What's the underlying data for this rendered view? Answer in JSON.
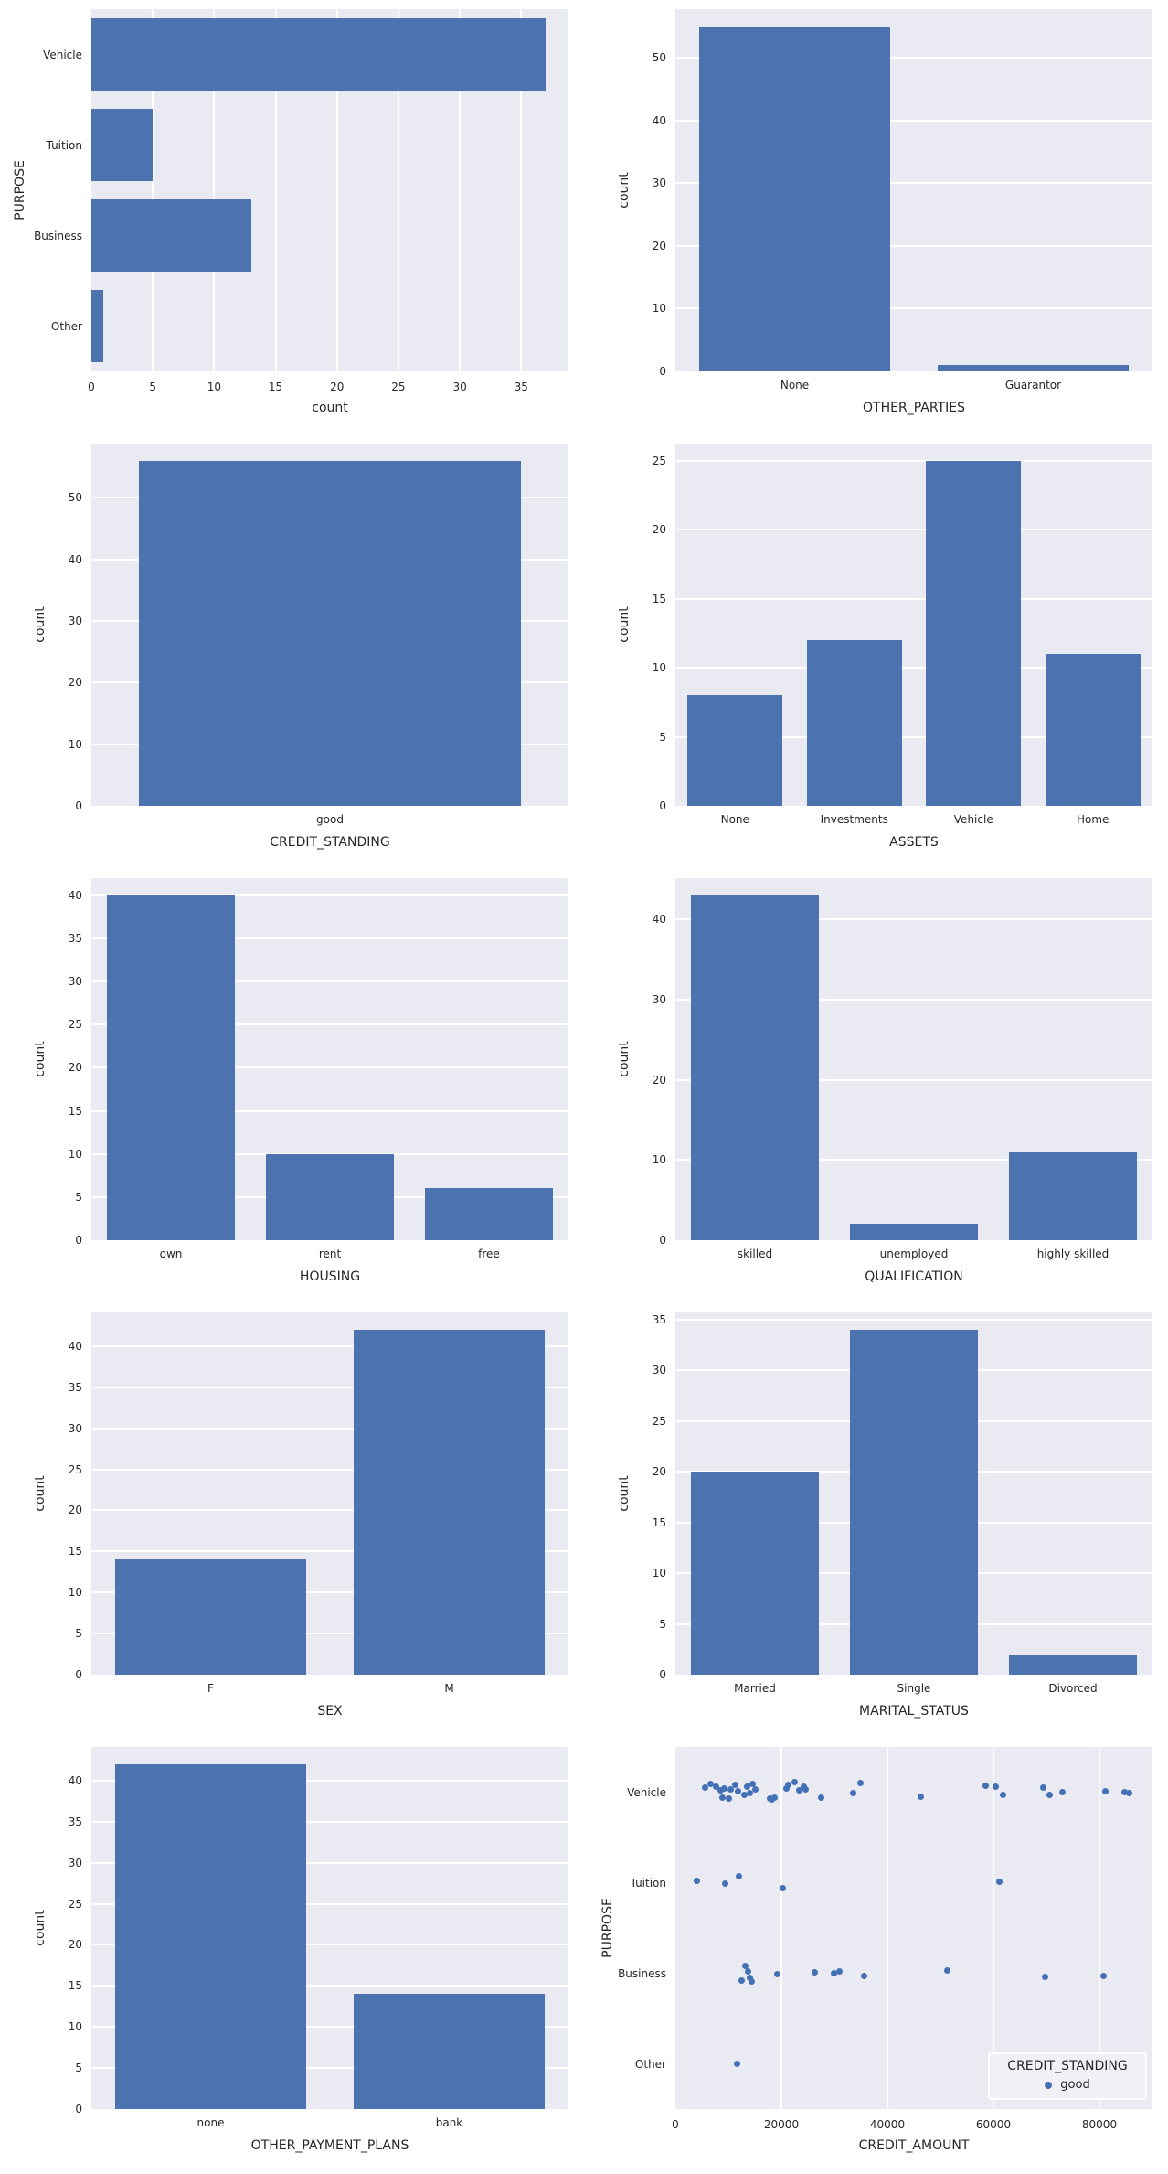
{
  "figure": {
    "bg": "#ffffff",
    "plot_bg": "#eaeaf2",
    "grid_color": "#ffffff",
    "bar_color": "#4c72b0",
    "dot_color": "#4470b5",
    "text_color": "#262626"
  },
  "chart_data": [
    {
      "type": "bar",
      "orientation": "h",
      "xlabel": "count",
      "ylabel": "PURPOSE",
      "categories": [
        "Vehicle",
        "Tuition",
        "Business",
        "Other"
      ],
      "values": [
        37,
        5,
        13,
        1
      ],
      "ticks": [
        0,
        5,
        10,
        15,
        20,
        25,
        30,
        35
      ],
      "vmax": 38.85,
      "grid": true,
      "legend_position": null
    },
    {
      "type": "bar",
      "orientation": "v",
      "xlabel": "OTHER_PARTIES",
      "ylabel": "count",
      "categories": [
        "None",
        "Guarantor"
      ],
      "values": [
        55,
        1
      ],
      "ticks": [
        0,
        10,
        20,
        30,
        40,
        50
      ],
      "vmax": 57.75,
      "grid": true,
      "legend_position": null
    },
    {
      "type": "bar",
      "orientation": "v",
      "xlabel": "CREDIT_STANDING",
      "ylabel": "count",
      "categories": [
        "good"
      ],
      "values": [
        56
      ],
      "ticks": [
        0,
        10,
        20,
        30,
        40,
        50
      ],
      "vmax": 58.8,
      "grid": true,
      "legend_position": null
    },
    {
      "type": "bar",
      "orientation": "v",
      "xlabel": "ASSETS",
      "ylabel": "count",
      "categories": [
        "None",
        "Investments",
        "Vehicle",
        "Home"
      ],
      "values": [
        8,
        12,
        25,
        11
      ],
      "ticks": [
        0,
        5,
        10,
        15,
        20,
        25
      ],
      "vmax": 26.25,
      "grid": true,
      "legend_position": null
    },
    {
      "type": "bar",
      "orientation": "v",
      "xlabel": "HOUSING",
      "ylabel": "count",
      "categories": [
        "own",
        "rent",
        "free"
      ],
      "values": [
        40,
        10,
        6
      ],
      "ticks": [
        0,
        5,
        10,
        15,
        20,
        25,
        30,
        35,
        40
      ],
      "vmax": 42,
      "grid": true,
      "legend_position": null
    },
    {
      "type": "bar",
      "orientation": "v",
      "xlabel": "QUALIFICATION",
      "ylabel": "count",
      "categories": [
        "skilled",
        "unemployed",
        "highly skilled"
      ],
      "values": [
        43,
        2,
        11
      ],
      "ticks": [
        0,
        10,
        20,
        30,
        40
      ],
      "vmax": 45.15,
      "grid": true,
      "legend_position": null
    },
    {
      "type": "bar",
      "orientation": "v",
      "xlabel": "SEX",
      "ylabel": "count",
      "categories": [
        "F",
        "M"
      ],
      "values": [
        14,
        42
      ],
      "ticks": [
        0,
        5,
        10,
        15,
        20,
        25,
        30,
        35,
        40
      ],
      "vmax": 44.1,
      "grid": true,
      "legend_position": null
    },
    {
      "type": "bar",
      "orientation": "v",
      "xlabel": "MARITAL_STATUS",
      "ylabel": "count",
      "categories": [
        "Married",
        "Single",
        "Divorced"
      ],
      "values": [
        20,
        34,
        2
      ],
      "ticks": [
        0,
        5,
        10,
        15,
        20,
        25,
        30,
        35
      ],
      "vmax": 35.7,
      "grid": true,
      "legend_position": null
    },
    {
      "type": "bar",
      "orientation": "v",
      "xlabel": "OTHER_PAYMENT_PLANS",
      "ylabel": "count",
      "categories": [
        "none",
        "bank"
      ],
      "values": [
        42,
        14
      ],
      "ticks": [
        0,
        5,
        10,
        15,
        20,
        25,
        30,
        35,
        40
      ],
      "vmax": 44.1,
      "grid": true,
      "legend_position": null
    },
    {
      "type": "strip",
      "xlabel": "CREDIT_AMOUNT",
      "ylabel": "PURPOSE",
      "categories": [
        "Vehicle",
        "Tuition",
        "Business",
        "Other"
      ],
      "xticks": [
        0,
        20000,
        40000,
        60000,
        80000
      ],
      "xmax": 90000,
      "grid": true,
      "legend_position": "lower right",
      "legend": {
        "title": "CREDIT_STANDING",
        "items": [
          {
            "label": "good"
          }
        ]
      },
      "points": [
        {
          "x": 5576,
          "c": 0,
          "dy": -5
        },
        {
          "x": 6622,
          "c": 0,
          "dy": -9
        },
        {
          "x": 7667,
          "c": 0,
          "dy": -6
        },
        {
          "x": 8503,
          "c": 0,
          "dy": -2
        },
        {
          "x": 8922,
          "c": 0,
          "dy": 6
        },
        {
          "x": 9270,
          "c": 0,
          "dy": -4
        },
        {
          "x": 10107,
          "c": 0,
          "dy": 7
        },
        {
          "x": 10455,
          "c": 0,
          "dy": -3
        },
        {
          "x": 11291,
          "c": 0,
          "dy": -8
        },
        {
          "x": 11849,
          "c": 0,
          "dy": -1
        },
        {
          "x": 13034,
          "c": 0,
          "dy": 3
        },
        {
          "x": 13592,
          "c": 0,
          "dy": -6
        },
        {
          "x": 14080,
          "c": 0,
          "dy": 1
        },
        {
          "x": 14637,
          "c": 0,
          "dy": -9
        },
        {
          "x": 15125,
          "c": 0,
          "dy": -3
        },
        {
          "x": 17774,
          "c": 0,
          "dy": 7
        },
        {
          "x": 18262,
          "c": 0,
          "dy": 8
        },
        {
          "x": 18680,
          "c": 0,
          "dy": 6
        },
        {
          "x": 20910,
          "c": 0,
          "dy": -4
        },
        {
          "x": 21328,
          "c": 0,
          "dy": -8
        },
        {
          "x": 22443,
          "c": 0,
          "dy": -11
        },
        {
          "x": 23350,
          "c": 0,
          "dy": -2
        },
        {
          "x": 24186,
          "c": 0,
          "dy": -6
        },
        {
          "x": 24604,
          "c": 0,
          "dy": -3
        },
        {
          "x": 27532,
          "c": 0,
          "dy": 6
        },
        {
          "x": 33456,
          "c": 0,
          "dy": 1
        },
        {
          "x": 34989,
          "c": 0,
          "dy": -10
        },
        {
          "x": 46351,
          "c": 0,
          "dy": 5
        },
        {
          "x": 58549,
          "c": 0,
          "dy": -7
        },
        {
          "x": 60431,
          "c": 0,
          "dy": -6
        },
        {
          "x": 61825,
          "c": 0,
          "dy": 3
        },
        {
          "x": 69352,
          "c": 0,
          "dy": -5
        },
        {
          "x": 70537,
          "c": 0,
          "dy": 3
        },
        {
          "x": 72976,
          "c": 0,
          "dy": 0
        },
        {
          "x": 81201,
          "c": 0,
          "dy": -1
        },
        {
          "x": 84677,
          "c": 0,
          "dy": 0
        },
        {
          "x": 85592,
          "c": 0,
          "dy": 1
        },
        {
          "x": 3973,
          "c": 1,
          "dy": -2
        },
        {
          "x": 9410,
          "c": 1,
          "dy": 1
        },
        {
          "x": 11988,
          "c": 1,
          "dy": -7
        },
        {
          "x": 20213,
          "c": 1,
          "dy": 6
        },
        {
          "x": 61128,
          "c": 1,
          "dy": -1
        },
        {
          "x": 12546,
          "c": 2,
          "dy": 8
        },
        {
          "x": 13200,
          "c": 2,
          "dy": -8
        },
        {
          "x": 13732,
          "c": 2,
          "dy": -2
        },
        {
          "x": 14080,
          "c": 2,
          "dy": 5
        },
        {
          "x": 14400,
          "c": 2,
          "dy": 9
        },
        {
          "x": 19168,
          "c": 2,
          "dy": 1
        },
        {
          "x": 26278,
          "c": 2,
          "dy": -1
        },
        {
          "x": 29971,
          "c": 2,
          "dy": 0
        },
        {
          "x": 31017,
          "c": 2,
          "dy": -2
        },
        {
          "x": 35686,
          "c": 2,
          "dy": 3
        },
        {
          "x": 51369,
          "c": 2,
          "dy": -3
        },
        {
          "x": 69700,
          "c": 2,
          "dy": 4
        },
        {
          "x": 80852,
          "c": 2,
          "dy": 3
        },
        {
          "x": 11709,
          "c": 3,
          "dy": 0
        }
      ]
    }
  ]
}
